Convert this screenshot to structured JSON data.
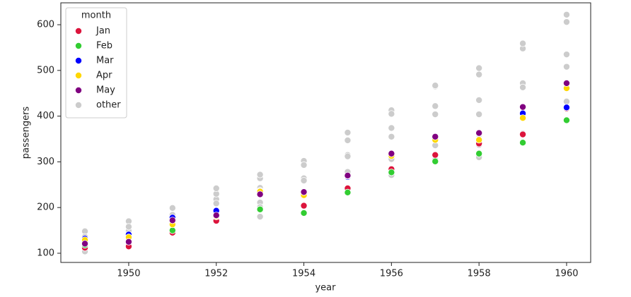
{
  "chart_data": {
    "type": "scatter",
    "x_label": "year",
    "y_label": "passengers",
    "legend_title": "month",
    "legend": "upper left",
    "xlim": [
      1948.45,
      1960.55
    ],
    "ylim": [
      79.9,
      647.9
    ],
    "xticks": [
      1950,
      1952,
      1954,
      1956,
      1958,
      1960
    ],
    "yticks": [
      100,
      200,
      300,
      400,
      500,
      600
    ],
    "series": [
      {
        "name": "other",
        "color": "#cccccc",
        "x": [
          1949,
          1949,
          1949,
          1949,
          1949,
          1949,
          1949,
          1950,
          1950,
          1950,
          1950,
          1950,
          1950,
          1950,
          1951,
          1951,
          1951,
          1951,
          1951,
          1951,
          1951,
          1952,
          1952,
          1952,
          1952,
          1952,
          1952,
          1952,
          1953,
          1953,
          1953,
          1953,
          1953,
          1953,
          1953,
          1954,
          1954,
          1954,
          1954,
          1954,
          1954,
          1954,
          1955,
          1955,
          1955,
          1955,
          1955,
          1955,
          1955,
          1956,
          1956,
          1956,
          1956,
          1956,
          1956,
          1956,
          1957,
          1957,
          1957,
          1957,
          1957,
          1957,
          1957,
          1958,
          1958,
          1958,
          1958,
          1958,
          1958,
          1958,
          1959,
          1959,
          1959,
          1959,
          1959,
          1959,
          1959,
          1960,
          1960,
          1960,
          1960,
          1960,
          1960,
          1960
        ],
        "values": [
          135,
          148,
          148,
          136,
          119,
          104,
          118,
          149,
          170,
          170,
          158,
          133,
          114,
          140,
          178,
          199,
          199,
          184,
          162,
          146,
          166,
          218,
          230,
          242,
          209,
          191,
          172,
          194,
          243,
          264,
          272,
          237,
          211,
          180,
          201,
          264,
          302,
          293,
          259,
          229,
          203,
          229,
          315,
          364,
          347,
          312,
          274,
          237,
          278,
          374,
          413,
          405,
          355,
          306,
          271,
          306,
          422,
          465,
          467,
          404,
          347,
          305,
          336,
          435,
          491,
          505,
          404,
          359,
          310,
          337,
          472,
          548,
          559,
          463,
          407,
          362,
          405,
          535,
          622,
          606,
          508,
          461,
          390,
          432
        ]
      },
      {
        "name": "Jan",
        "color": "#dc143c",
        "x": [
          1949,
          1950,
          1951,
          1952,
          1953,
          1954,
          1955,
          1956,
          1957,
          1958,
          1959,
          1960
        ],
        "values": [
          112,
          115,
          145,
          171,
          196,
          204,
          242,
          284,
          315,
          340,
          360,
          417
        ]
      },
      {
        "name": "Feb",
        "color": "#32cd32",
        "x": [
          1949,
          1950,
          1951,
          1952,
          1953,
          1954,
          1955,
          1956,
          1957,
          1958,
          1959,
          1960
        ],
        "values": [
          118,
          126,
          150,
          180,
          196,
          188,
          233,
          277,
          301,
          318,
          342,
          391
        ]
      },
      {
        "name": "Mar",
        "color": "#0000ff",
        "x": [
          1949,
          1950,
          1951,
          1952,
          1953,
          1954,
          1955,
          1956,
          1957,
          1958,
          1959,
          1960
        ],
        "values": [
          132,
          141,
          178,
          193,
          236,
          235,
          267,
          317,
          356,
          362,
          406,
          419
        ]
      },
      {
        "name": "Apr",
        "color": "#ffd700",
        "x": [
          1949,
          1950,
          1951,
          1952,
          1953,
          1954,
          1955,
          1956,
          1957,
          1958,
          1959,
          1960
        ],
        "values": [
          129,
          135,
          163,
          181,
          235,
          227,
          269,
          313,
          348,
          348,
          396,
          461
        ]
      },
      {
        "name": "May",
        "color": "#800080",
        "x": [
          1949,
          1950,
          1951,
          1952,
          1953,
          1954,
          1955,
          1956,
          1957,
          1958,
          1959,
          1960
        ],
        "values": [
          121,
          125,
          172,
          183,
          229,
          234,
          270,
          318,
          355,
          363,
          420,
          472
        ]
      }
    ]
  }
}
